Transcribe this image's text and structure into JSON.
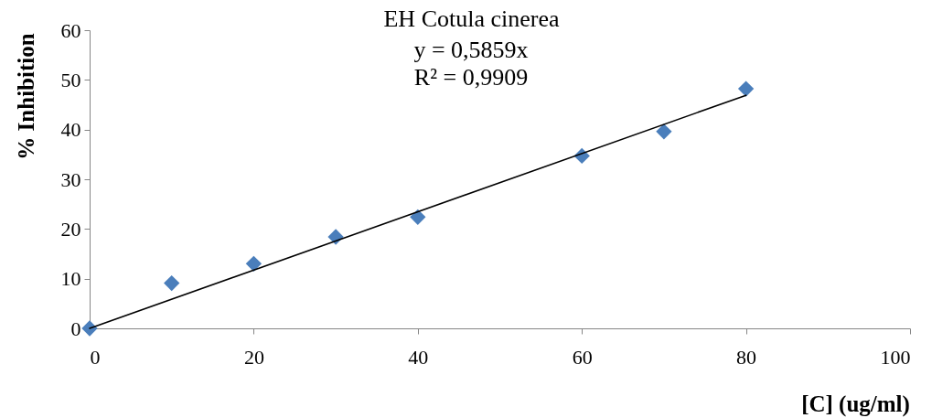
{
  "chart_data": {
    "type": "scatter",
    "title": "EH Cotula cinerea",
    "xlabel": "[C] (ug/ml)",
    "ylabel": "% Inhibition",
    "annotations": [
      "y = 0,5859x",
      "R² = 0,9909"
    ],
    "x": [
      0,
      10,
      20,
      30,
      40,
      60,
      70,
      80
    ],
    "series": [
      {
        "color": "#4a7ebb",
        "marker": "diamond",
        "values": [
          0,
          9.1,
          13.0,
          18.4,
          22.4,
          34.7,
          39.6,
          48.2
        ]
      },
      {
        "type": "line",
        "color": "#000000",
        "x": [
          0,
          80
        ],
        "values": [
          0,
          46.9
        ]
      }
    ],
    "xlim": [
      0,
      100
    ],
    "ylim": [
      0,
      60
    ],
    "xticks": [
      0,
      20,
      40,
      60,
      80,
      100
    ],
    "yticks": [
      0,
      10,
      20,
      30,
      40,
      50,
      60
    ]
  }
}
